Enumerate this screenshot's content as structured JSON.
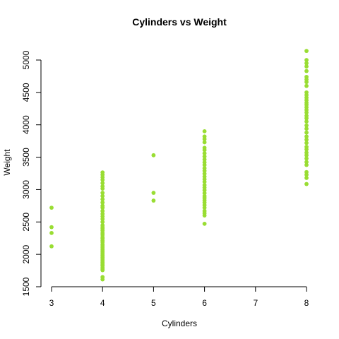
{
  "chart_data": {
    "type": "scatter",
    "title": "Cylinders vs Weight",
    "xlabel": "Cylinders",
    "ylabel": "Weight",
    "xlim": [
      3,
      8
    ],
    "ylim": [
      1500,
      5000
    ],
    "x_ticks": [
      3,
      4,
      5,
      6,
      7,
      8
    ],
    "y_ticks": [
      1500,
      2000,
      2500,
      3000,
      3500,
      4000,
      4500,
      5000
    ],
    "grid": false,
    "point_color": "#99DD33",
    "series": [
      {
        "points": [
          [
            3,
            2124
          ],
          [
            3,
            2330
          ],
          [
            3,
            2420
          ],
          [
            3,
            2720
          ],
          [
            4,
            1613
          ],
          [
            4,
            1649
          ],
          [
            4,
            1755
          ],
          [
            4,
            1773
          ],
          [
            4,
            1795
          ],
          [
            4,
            1825
          ],
          [
            4,
            1835
          ],
          [
            4,
            1850
          ],
          [
            4,
            1875
          ],
          [
            4,
            1900
          ],
          [
            4,
            1925
          ],
          [
            4,
            1950
          ],
          [
            4,
            1975
          ],
          [
            4,
            1990
          ],
          [
            4,
            2020
          ],
          [
            4,
            2045
          ],
          [
            4,
            2070
          ],
          [
            4,
            2100
          ],
          [
            4,
            2130
          ],
          [
            4,
            2155
          ],
          [
            4,
            2190
          ],
          [
            4,
            2215
          ],
          [
            4,
            2245
          ],
          [
            4,
            2265
          ],
          [
            4,
            2300
          ],
          [
            4,
            2330
          ],
          [
            4,
            2365
          ],
          [
            4,
            2395
          ],
          [
            4,
            2420
          ],
          [
            4,
            2450
          ],
          [
            4,
            2500
          ],
          [
            4,
            2545
          ],
          [
            4,
            2585
          ],
          [
            4,
            2625
          ],
          [
            4,
            2670
          ],
          [
            4,
            2720
          ],
          [
            4,
            2750
          ],
          [
            4,
            2800
          ],
          [
            4,
            2850
          ],
          [
            4,
            2900
          ],
          [
            4,
            2950
          ],
          [
            4,
            3015
          ],
          [
            4,
            3050
          ],
          [
            4,
            3100
          ],
          [
            4,
            3150
          ],
          [
            4,
            3190
          ],
          [
            4,
            3230
          ],
          [
            4,
            3265
          ],
          [
            5,
            2830
          ],
          [
            5,
            2950
          ],
          [
            5,
            3530
          ],
          [
            6,
            2472
          ],
          [
            6,
            2600
          ],
          [
            6,
            2635
          ],
          [
            6,
            2670
          ],
          [
            6,
            2720
          ],
          [
            6,
            2760
          ],
          [
            6,
            2800
          ],
          [
            6,
            2835
          ],
          [
            6,
            2870
          ],
          [
            6,
            2900
          ],
          [
            6,
            2945
          ],
          [
            6,
            2990
          ],
          [
            6,
            3030
          ],
          [
            6,
            3070
          ],
          [
            6,
            3120
          ],
          [
            6,
            3160
          ],
          [
            6,
            3200
          ],
          [
            6,
            3245
          ],
          [
            6,
            3290
          ],
          [
            6,
            3330
          ],
          [
            6,
            3380
          ],
          [
            6,
            3420
          ],
          [
            6,
            3465
          ],
          [
            6,
            3510
          ],
          [
            6,
            3560
          ],
          [
            6,
            3610
          ],
          [
            6,
            3645
          ],
          [
            6,
            3730
          ],
          [
            6,
            3780
          ],
          [
            6,
            3820
          ],
          [
            6,
            3900
          ],
          [
            8,
            3086
          ],
          [
            8,
            3180
          ],
          [
            8,
            3230
          ],
          [
            8,
            3270
          ],
          [
            8,
            3380
          ],
          [
            8,
            3425
          ],
          [
            8,
            3480
          ],
          [
            8,
            3530
          ],
          [
            8,
            3570
          ],
          [
            8,
            3620
          ],
          [
            8,
            3660
          ],
          [
            8,
            3720
          ],
          [
            8,
            3770
          ],
          [
            8,
            3820
          ],
          [
            8,
            3880
          ],
          [
            8,
            3940
          ],
          [
            8,
            3990
          ],
          [
            8,
            4050
          ],
          [
            8,
            4100
          ],
          [
            8,
            4140
          ],
          [
            8,
            4190
          ],
          [
            8,
            4230
          ],
          [
            8,
            4270
          ],
          [
            8,
            4310
          ],
          [
            8,
            4340
          ],
          [
            8,
            4380
          ],
          [
            8,
            4420
          ],
          [
            8,
            4460
          ],
          [
            8,
            4500
          ],
          [
            8,
            4600
          ],
          [
            8,
            4660
          ],
          [
            8,
            4700
          ],
          [
            8,
            4740
          ],
          [
            8,
            4830
          ],
          [
            8,
            4900
          ],
          [
            8,
            4950
          ],
          [
            8,
            5000
          ],
          [
            8,
            5140
          ]
        ]
      }
    ]
  }
}
